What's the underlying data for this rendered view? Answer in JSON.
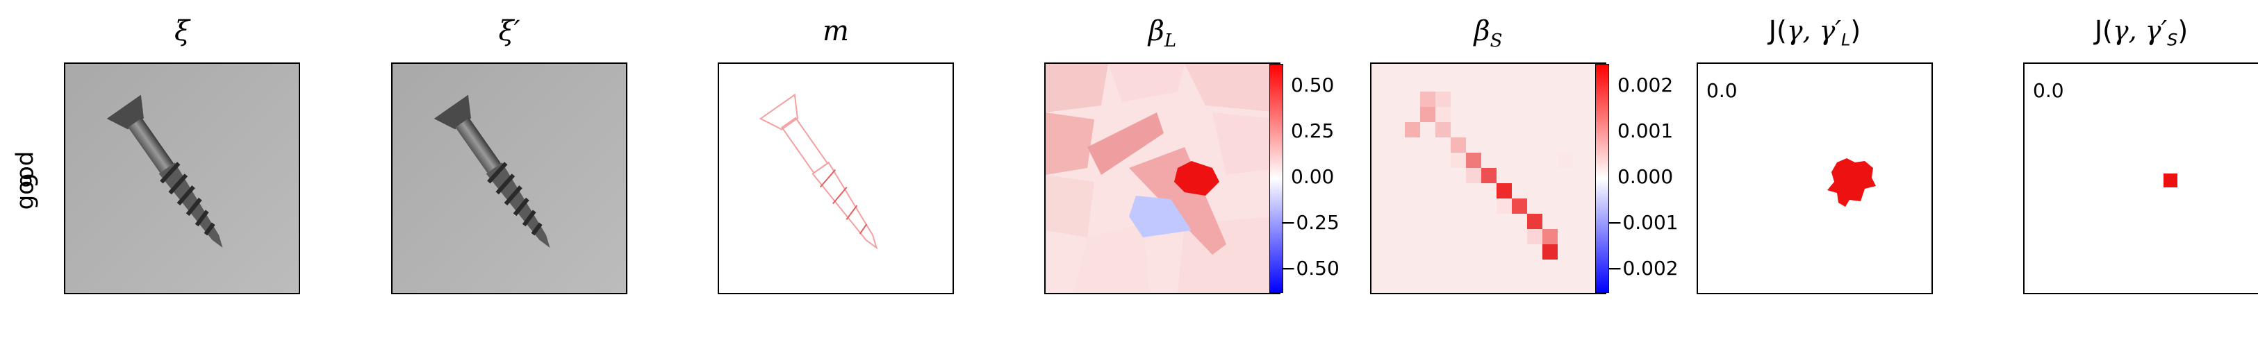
{
  "row_label": {
    "line1": "good",
    "line2": "9"
  },
  "panels": {
    "xi": {
      "title": "ξ"
    },
    "xi_prime": {
      "title": "ξ′"
    },
    "m": {
      "title": "m"
    },
    "beta_L": {
      "title": "β",
      "sub": "L",
      "colorbar": {
        "ticks": [
          "0.50",
          "0.25",
          "0.00",
          "−0.25",
          "−0.50"
        ],
        "colormap": "bwr"
      }
    },
    "beta_S": {
      "title": "β",
      "sub": "S",
      "colorbar": {
        "ticks": [
          "0.002",
          "0.001",
          "0.000",
          "−0.001",
          "−0.002"
        ],
        "colormap": "bwr"
      }
    },
    "J_L": {
      "title_pre": "J(",
      "title_mid": "γ, γ′",
      "title_sub": "L",
      "title_post": ")",
      "value": "0.0"
    },
    "J_S": {
      "title_pre": "J(",
      "title_mid": "γ, γ′",
      "title_sub": "S",
      "title_post": ")",
      "value": "0.0"
    }
  },
  "colors": {
    "positive": "#ff0000",
    "negative": "#0000ff",
    "neutral": "#ffffff",
    "gray_bg": "#b4b4b4"
  }
}
